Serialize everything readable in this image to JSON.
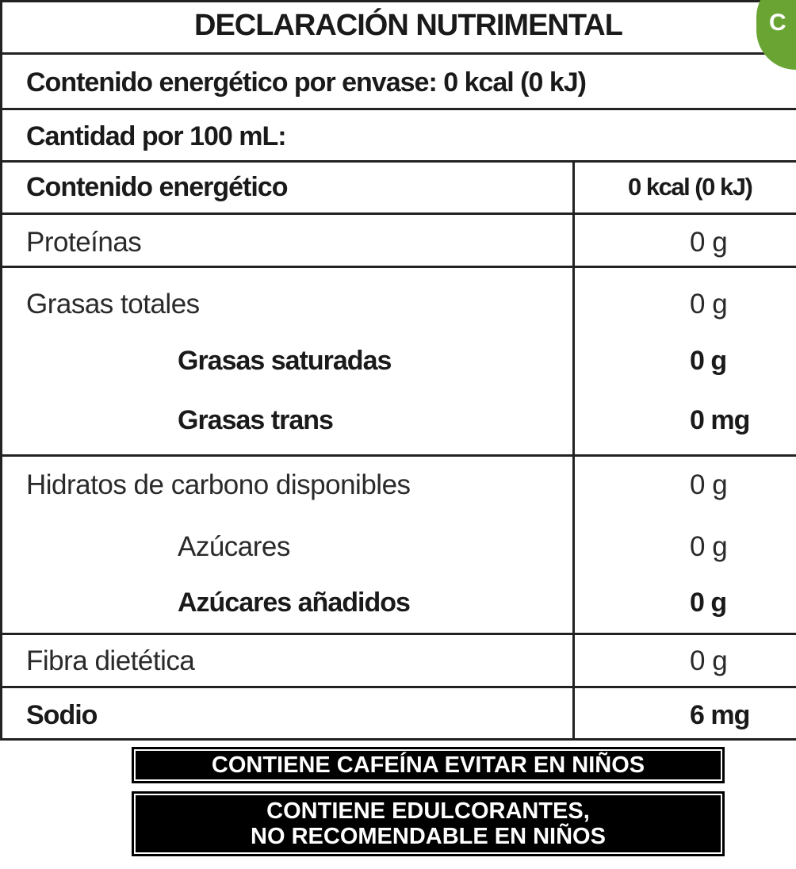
{
  "title": "DECLARACIÓN NUTRIMENTAL",
  "badge_letter": "C",
  "badge_color": "#6aa534",
  "per_container": "Contenido energético por envase: 0 kcal (0 kJ)",
  "per_100": "Cantidad por 100 mL:",
  "rows": [
    {
      "label": "Contenido energético",
      "value": "0 kcal (0 kJ)"
    },
    {
      "label": "Proteínas",
      "value": "0 g"
    },
    {
      "label": "Grasas totales",
      "value": "0 g"
    },
    {
      "label": "Grasas saturadas",
      "value": "0 g"
    },
    {
      "label": "Grasas trans",
      "value": "0 mg"
    },
    {
      "label": "Hidratos de carbono disponibles",
      "value": "0 g"
    },
    {
      "label": "Azúcares",
      "value": "0 g"
    },
    {
      "label": "Azúcares añadidos",
      "value": "0 g"
    },
    {
      "label": "Fibra dietética",
      "value": "0 g"
    },
    {
      "label": "Sodio",
      "value": "6 mg"
    }
  ],
  "warnings": {
    "caffeine": "CONTIENE CAFEÍNA EVITAR EN NIÑOS",
    "sweeteners_line1": "CONTIENE EDULCORANTES,",
    "sweeteners_line2": "NO RECOMENDABLE EN NIÑOS"
  }
}
